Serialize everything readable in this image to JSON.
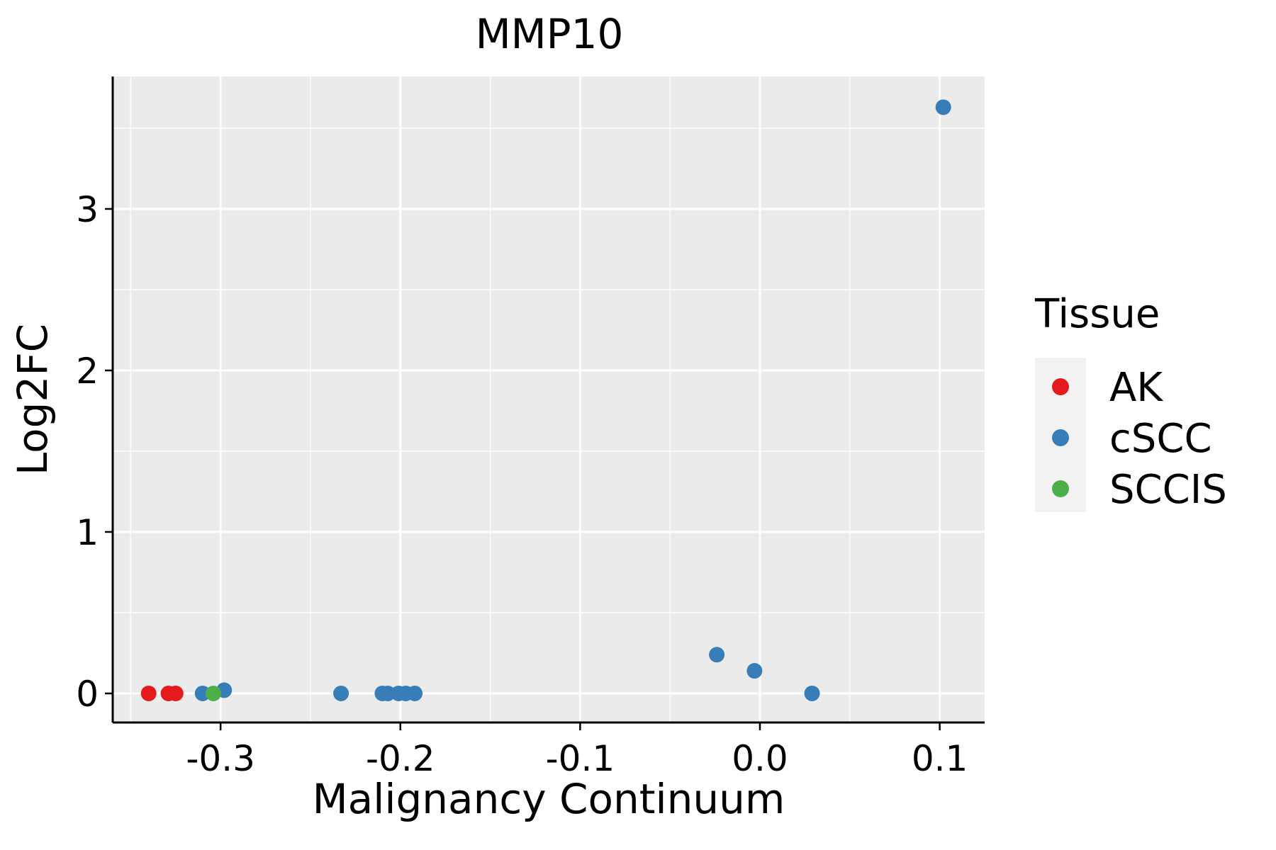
{
  "chart_data": {
    "type": "scatter",
    "title": "MMP10",
    "xlabel": "Malignancy Continuum",
    "ylabel": "Log2FC",
    "xlim": [
      -0.36,
      0.125
    ],
    "ylim": [
      -0.18,
      3.82
    ],
    "x_ticks": [
      -0.3,
      -0.2,
      -0.1,
      0.0,
      0.1
    ],
    "x_tick_labels": [
      "-0.3",
      "-0.2",
      "-0.1",
      "0.0",
      "0.1"
    ],
    "y_ticks": [
      0,
      1,
      2,
      3
    ],
    "y_tick_labels": [
      "0",
      "1",
      "2",
      "3"
    ],
    "grid": true,
    "panel_background": "#EBEBEB",
    "legend": {
      "title": "Tissue",
      "placement": "right"
    },
    "series": [
      {
        "name": "AK",
        "color": "#E41A1C",
        "points": [
          {
            "x": -0.34,
            "y": 0.0
          },
          {
            "x": -0.329,
            "y": 0.0
          },
          {
            "x": -0.325,
            "y": 0.0
          }
        ]
      },
      {
        "name": "cSCC",
        "color": "#377EB8",
        "points": [
          {
            "x": -0.31,
            "y": 0.0
          },
          {
            "x": -0.298,
            "y": 0.02
          },
          {
            "x": -0.233,
            "y": 0.0
          },
          {
            "x": -0.21,
            "y": 0.0
          },
          {
            "x": -0.207,
            "y": 0.0
          },
          {
            "x": -0.201,
            "y": 0.0
          },
          {
            "x": -0.197,
            "y": 0.0
          },
          {
            "x": -0.192,
            "y": 0.0
          },
          {
            "x": -0.024,
            "y": 0.24
          },
          {
            "x": -0.003,
            "y": 0.14
          },
          {
            "x": 0.029,
            "y": 0.0
          },
          {
            "x": 0.102,
            "y": 3.63
          }
        ]
      },
      {
        "name": "SCCIS",
        "color": "#4DAF4A",
        "points": [
          {
            "x": -0.304,
            "y": 0.0
          }
        ]
      }
    ]
  }
}
